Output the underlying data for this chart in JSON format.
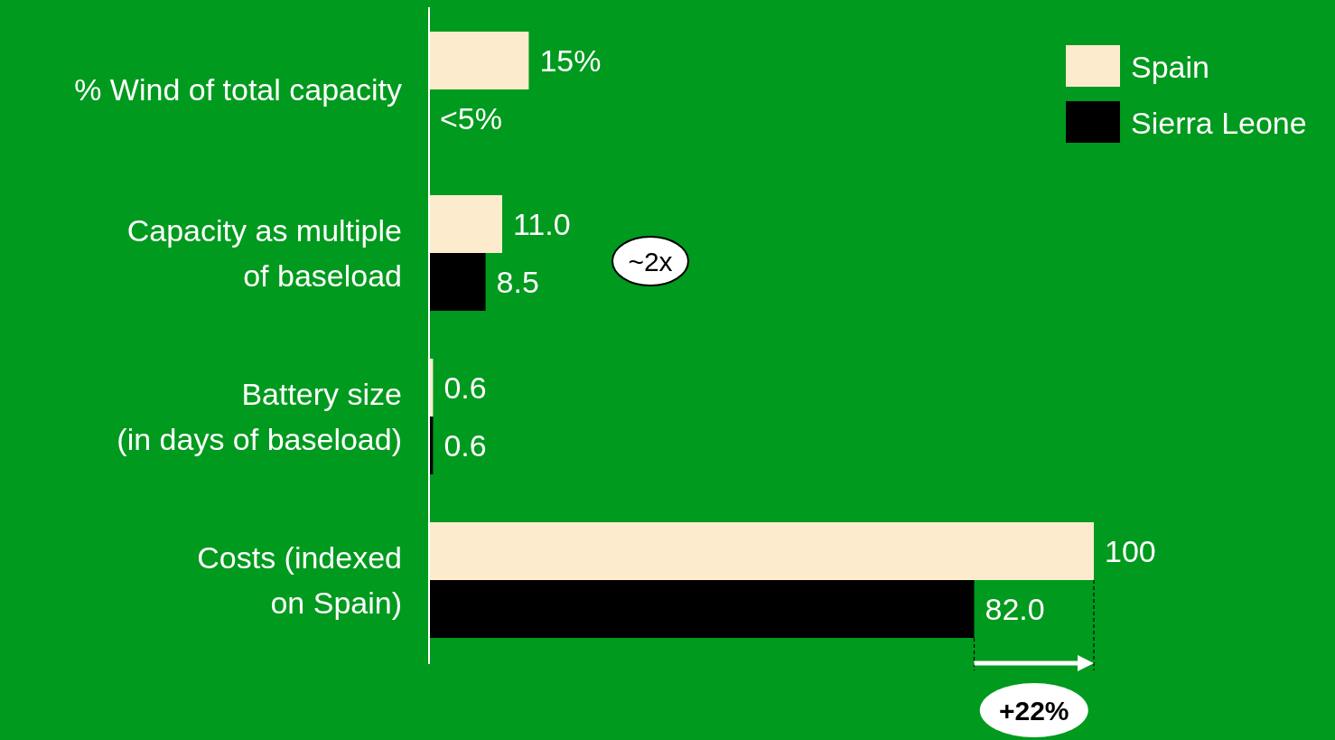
{
  "chart_data": {
    "type": "bar",
    "orientation": "horizontal",
    "categories": [
      "% Wind of total capacity",
      "Capacity as multiple\nof baseload",
      "Battery size\n(in days of baseload)",
      "Costs (indexed\non Spain)"
    ],
    "series": [
      {
        "name": "Spain",
        "color": "#fdebcd",
        "values": [
          15,
          11.0,
          0.6,
          100
        ],
        "value_labels": [
          "15%",
          "11.0",
          "0.6",
          "100"
        ]
      },
      {
        "name": "Sierra Leone",
        "color": "#000000",
        "values": [
          null,
          8.5,
          0.6,
          82.0
        ],
        "value_labels": [
          "<5%",
          "8.5",
          "0.6",
          "82.0"
        ]
      }
    ],
    "xlim": [
      0,
      100
    ],
    "legend": "top right",
    "annotations": [
      "~2x",
      "+22%"
    ]
  }
}
